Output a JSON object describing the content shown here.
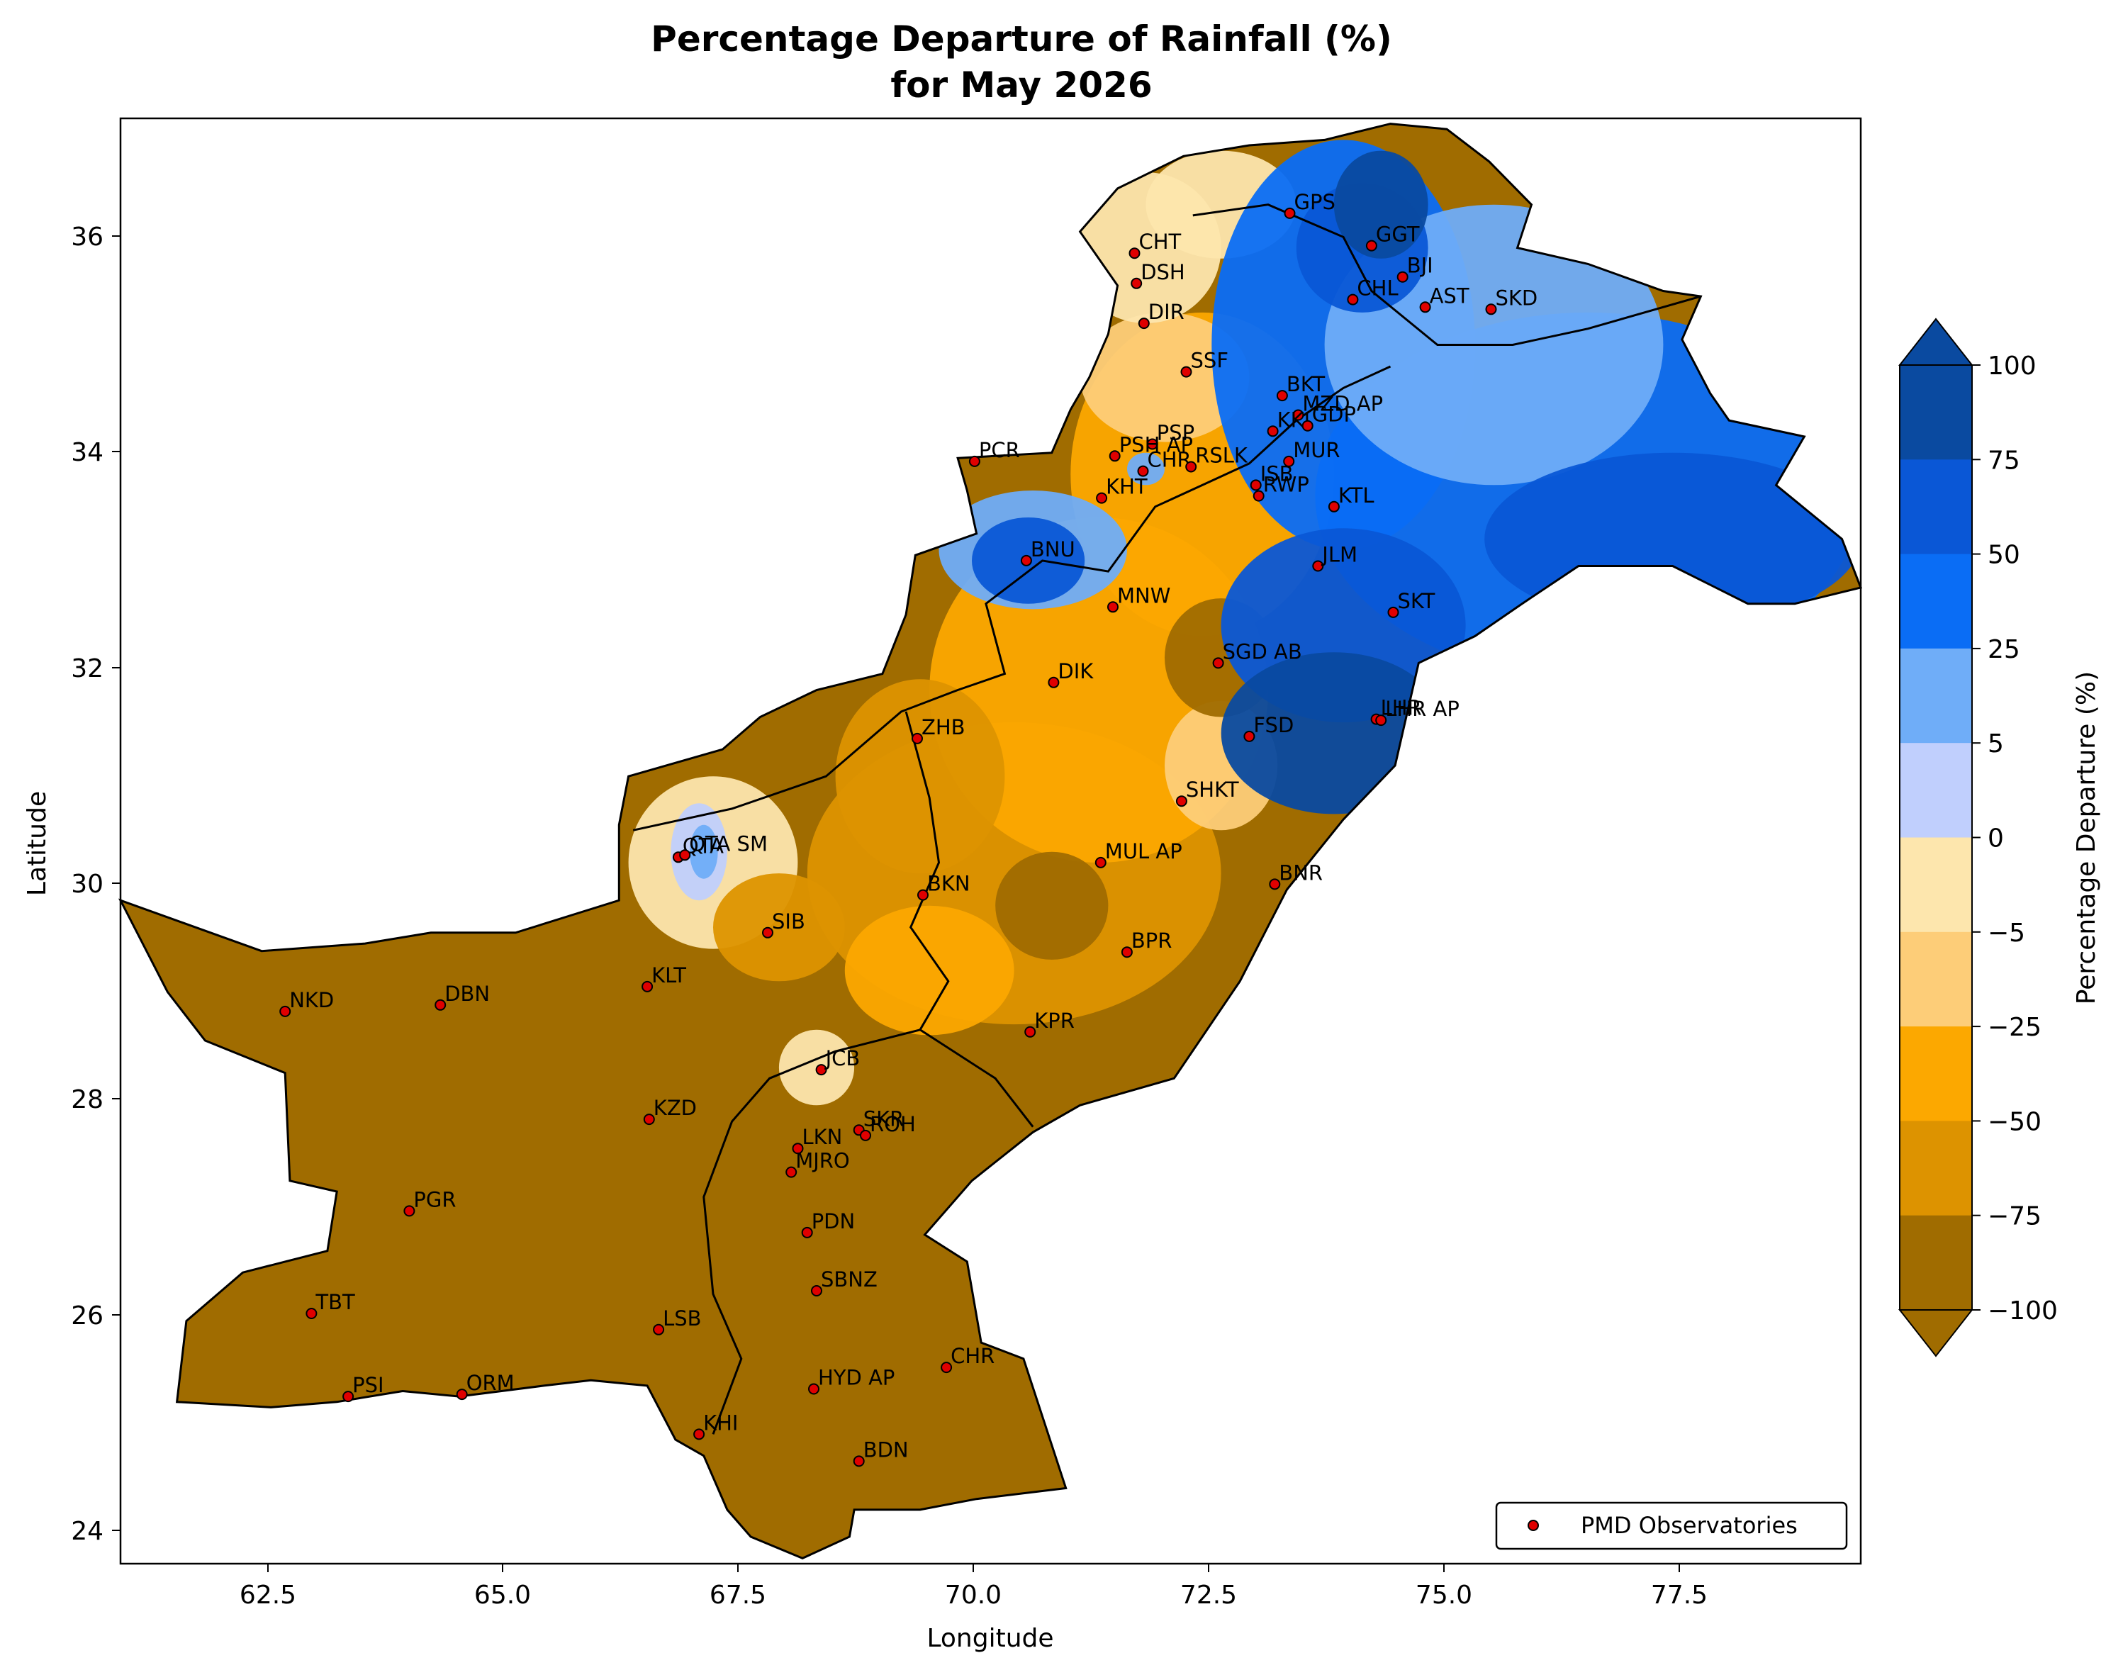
{
  "title_line1": "Percentage Departure of Rainfall (%)",
  "title_line2": "for May 2026",
  "xlabel": "Longitude",
  "ylabel": "Latitude",
  "x_ticks": [
    "62.5",
    "65.0",
    "67.5",
    "70.0",
    "72.5",
    "75.0",
    "77.5"
  ],
  "y_ticks": [
    "24",
    "26",
    "28",
    "30",
    "32",
    "34",
    "36"
  ],
  "colorbar": {
    "label": "Percentage Departure (%)",
    "ticks": [
      "100",
      "75",
      "50",
      "25",
      "5",
      "0",
      "−5",
      "−25",
      "−50",
      "−75",
      "−100"
    ],
    "colors": [
      "#0a4aa0",
      "#0a57d6",
      "#0a6df5",
      "#6fadf8",
      "#c0cffd",
      "#fde6ad",
      "#fdcd78",
      "#fca800",
      "#dd9300",
      "#a06c00"
    ]
  },
  "legend": {
    "label": "PMD Observatories"
  },
  "chart_data": {
    "type": "map",
    "extent": {
      "lon": [
        61.0,
        79.5
      ],
      "lat": [
        23.7,
        37.1
      ]
    },
    "levels": [
      -100,
      -75,
      -50,
      -25,
      -5,
      0,
      5,
      25,
      50,
      75,
      100
    ],
    "stations": [
      {
        "name": "GPS",
        "lon": 73.43,
        "lat": 36.22
      },
      {
        "name": "GGT",
        "lon": 74.3,
        "lat": 35.92
      },
      {
        "name": "BJI",
        "lon": 74.63,
        "lat": 35.63
      },
      {
        "name": "CHT",
        "lon": 71.78,
        "lat": 35.85
      },
      {
        "name": "DSH",
        "lon": 71.8,
        "lat": 35.57
      },
      {
        "name": "CHL",
        "lon": 74.1,
        "lat": 35.42
      },
      {
        "name": "AST",
        "lon": 74.87,
        "lat": 35.35
      },
      {
        "name": "SKD",
        "lon": 75.57,
        "lat": 35.33
      },
      {
        "name": "DIR",
        "lon": 71.88,
        "lat": 35.2
      },
      {
        "name": "SSF",
        "lon": 72.33,
        "lat": 34.75
      },
      {
        "name": "BKT",
        "lon": 73.35,
        "lat": 34.53
      },
      {
        "name": "MZD AP",
        "lon": 73.52,
        "lat": 34.35
      },
      {
        "name": "KKI",
        "lon": 73.25,
        "lat": 34.2
      },
      {
        "name": "GDP",
        "lon": 73.62,
        "lat": 34.25
      },
      {
        "name": "PCR",
        "lon": 70.08,
        "lat": 33.92
      },
      {
        "name": "PSP",
        "lon": 71.97,
        "lat": 34.08
      },
      {
        "name": "PSH AP",
        "lon": 71.57,
        "lat": 33.97
      },
      {
        "name": "CHR",
        "lon": 71.87,
        "lat": 33.83
      },
      {
        "name": "RSLK",
        "lon": 72.38,
        "lat": 33.87
      },
      {
        "name": "MUR",
        "lon": 73.42,
        "lat": 33.92
      },
      {
        "name": "ISB",
        "lon": 73.07,
        "lat": 33.7
      },
      {
        "name": "RWP",
        "lon": 73.1,
        "lat": 33.6
      },
      {
        "name": "KTL",
        "lon": 73.9,
        "lat": 33.5
      },
      {
        "name": "KHT",
        "lon": 71.43,
        "lat": 33.58
      },
      {
        "name": "BNU",
        "lon": 70.63,
        "lat": 33.0
      },
      {
        "name": "JLM",
        "lon": 73.73,
        "lat": 32.95
      },
      {
        "name": "MNW",
        "lon": 71.55,
        "lat": 32.57
      },
      {
        "name": "SKT",
        "lon": 74.53,
        "lat": 32.52
      },
      {
        "name": "SGD AB",
        "lon": 72.67,
        "lat": 32.05
      },
      {
        "name": "DIK",
        "lon": 70.92,
        "lat": 31.87
      },
      {
        "name": "LHR",
        "lon": 74.35,
        "lat": 31.53
      },
      {
        "name": "LHR AP",
        "lon": 74.4,
        "lat": 31.52
      },
      {
        "name": "FSD",
        "lon": 73.0,
        "lat": 31.37
      },
      {
        "name": "ZHB",
        "lon": 69.47,
        "lat": 31.35
      },
      {
        "name": "SHKT",
        "lon": 72.28,
        "lat": 30.77
      },
      {
        "name": "QTA",
        "lon": 66.93,
        "lat": 30.25
      },
      {
        "name": "QTA SM",
        "lon": 67.0,
        "lat": 30.27
      },
      {
        "name": "MUL AP",
        "lon": 71.42,
        "lat": 30.2
      },
      {
        "name": "BNR",
        "lon": 73.27,
        "lat": 30.0
      },
      {
        "name": "BKN",
        "lon": 69.53,
        "lat": 29.9
      },
      {
        "name": "SIB",
        "lon": 67.88,
        "lat": 29.55
      },
      {
        "name": "BPR",
        "lon": 71.7,
        "lat": 29.37
      },
      {
        "name": "KLT",
        "lon": 66.6,
        "lat": 29.05
      },
      {
        "name": "NKD",
        "lon": 62.75,
        "lat": 28.82
      },
      {
        "name": "DBN",
        "lon": 64.4,
        "lat": 28.88
      },
      {
        "name": "KPR",
        "lon": 70.67,
        "lat": 28.63
      },
      {
        "name": "JCB",
        "lon": 68.45,
        "lat": 28.28
      },
      {
        "name": "SKR",
        "lon": 68.85,
        "lat": 27.72
      },
      {
        "name": "ROH",
        "lon": 68.92,
        "lat": 27.67
      },
      {
        "name": "KZD",
        "lon": 66.62,
        "lat": 27.82
      },
      {
        "name": "LKN",
        "lon": 68.2,
        "lat": 27.55
      },
      {
        "name": "MJRO",
        "lon": 68.13,
        "lat": 27.33
      },
      {
        "name": "PGR",
        "lon": 64.07,
        "lat": 26.97
      },
      {
        "name": "PDN",
        "lon": 68.3,
        "lat": 26.77
      },
      {
        "name": "SBNZ",
        "lon": 68.4,
        "lat": 26.23
      },
      {
        "name": "TBT",
        "lon": 63.03,
        "lat": 26.02
      },
      {
        "name": "LSB",
        "lon": 66.72,
        "lat": 25.87
      },
      {
        "name": "CHR",
        "lon": 69.78,
        "lat": 25.52
      },
      {
        "name": "HYD AP",
        "lon": 68.37,
        "lat": 25.32
      },
      {
        "name": "PSI",
        "lon": 63.42,
        "lat": 25.25
      },
      {
        "name": "ORM",
        "lon": 64.63,
        "lat": 25.27
      },
      {
        "name": "KHI",
        "lon": 67.15,
        "lat": 24.9
      },
      {
        "name": "BDN",
        "lon": 68.85,
        "lat": 24.65
      }
    ]
  }
}
